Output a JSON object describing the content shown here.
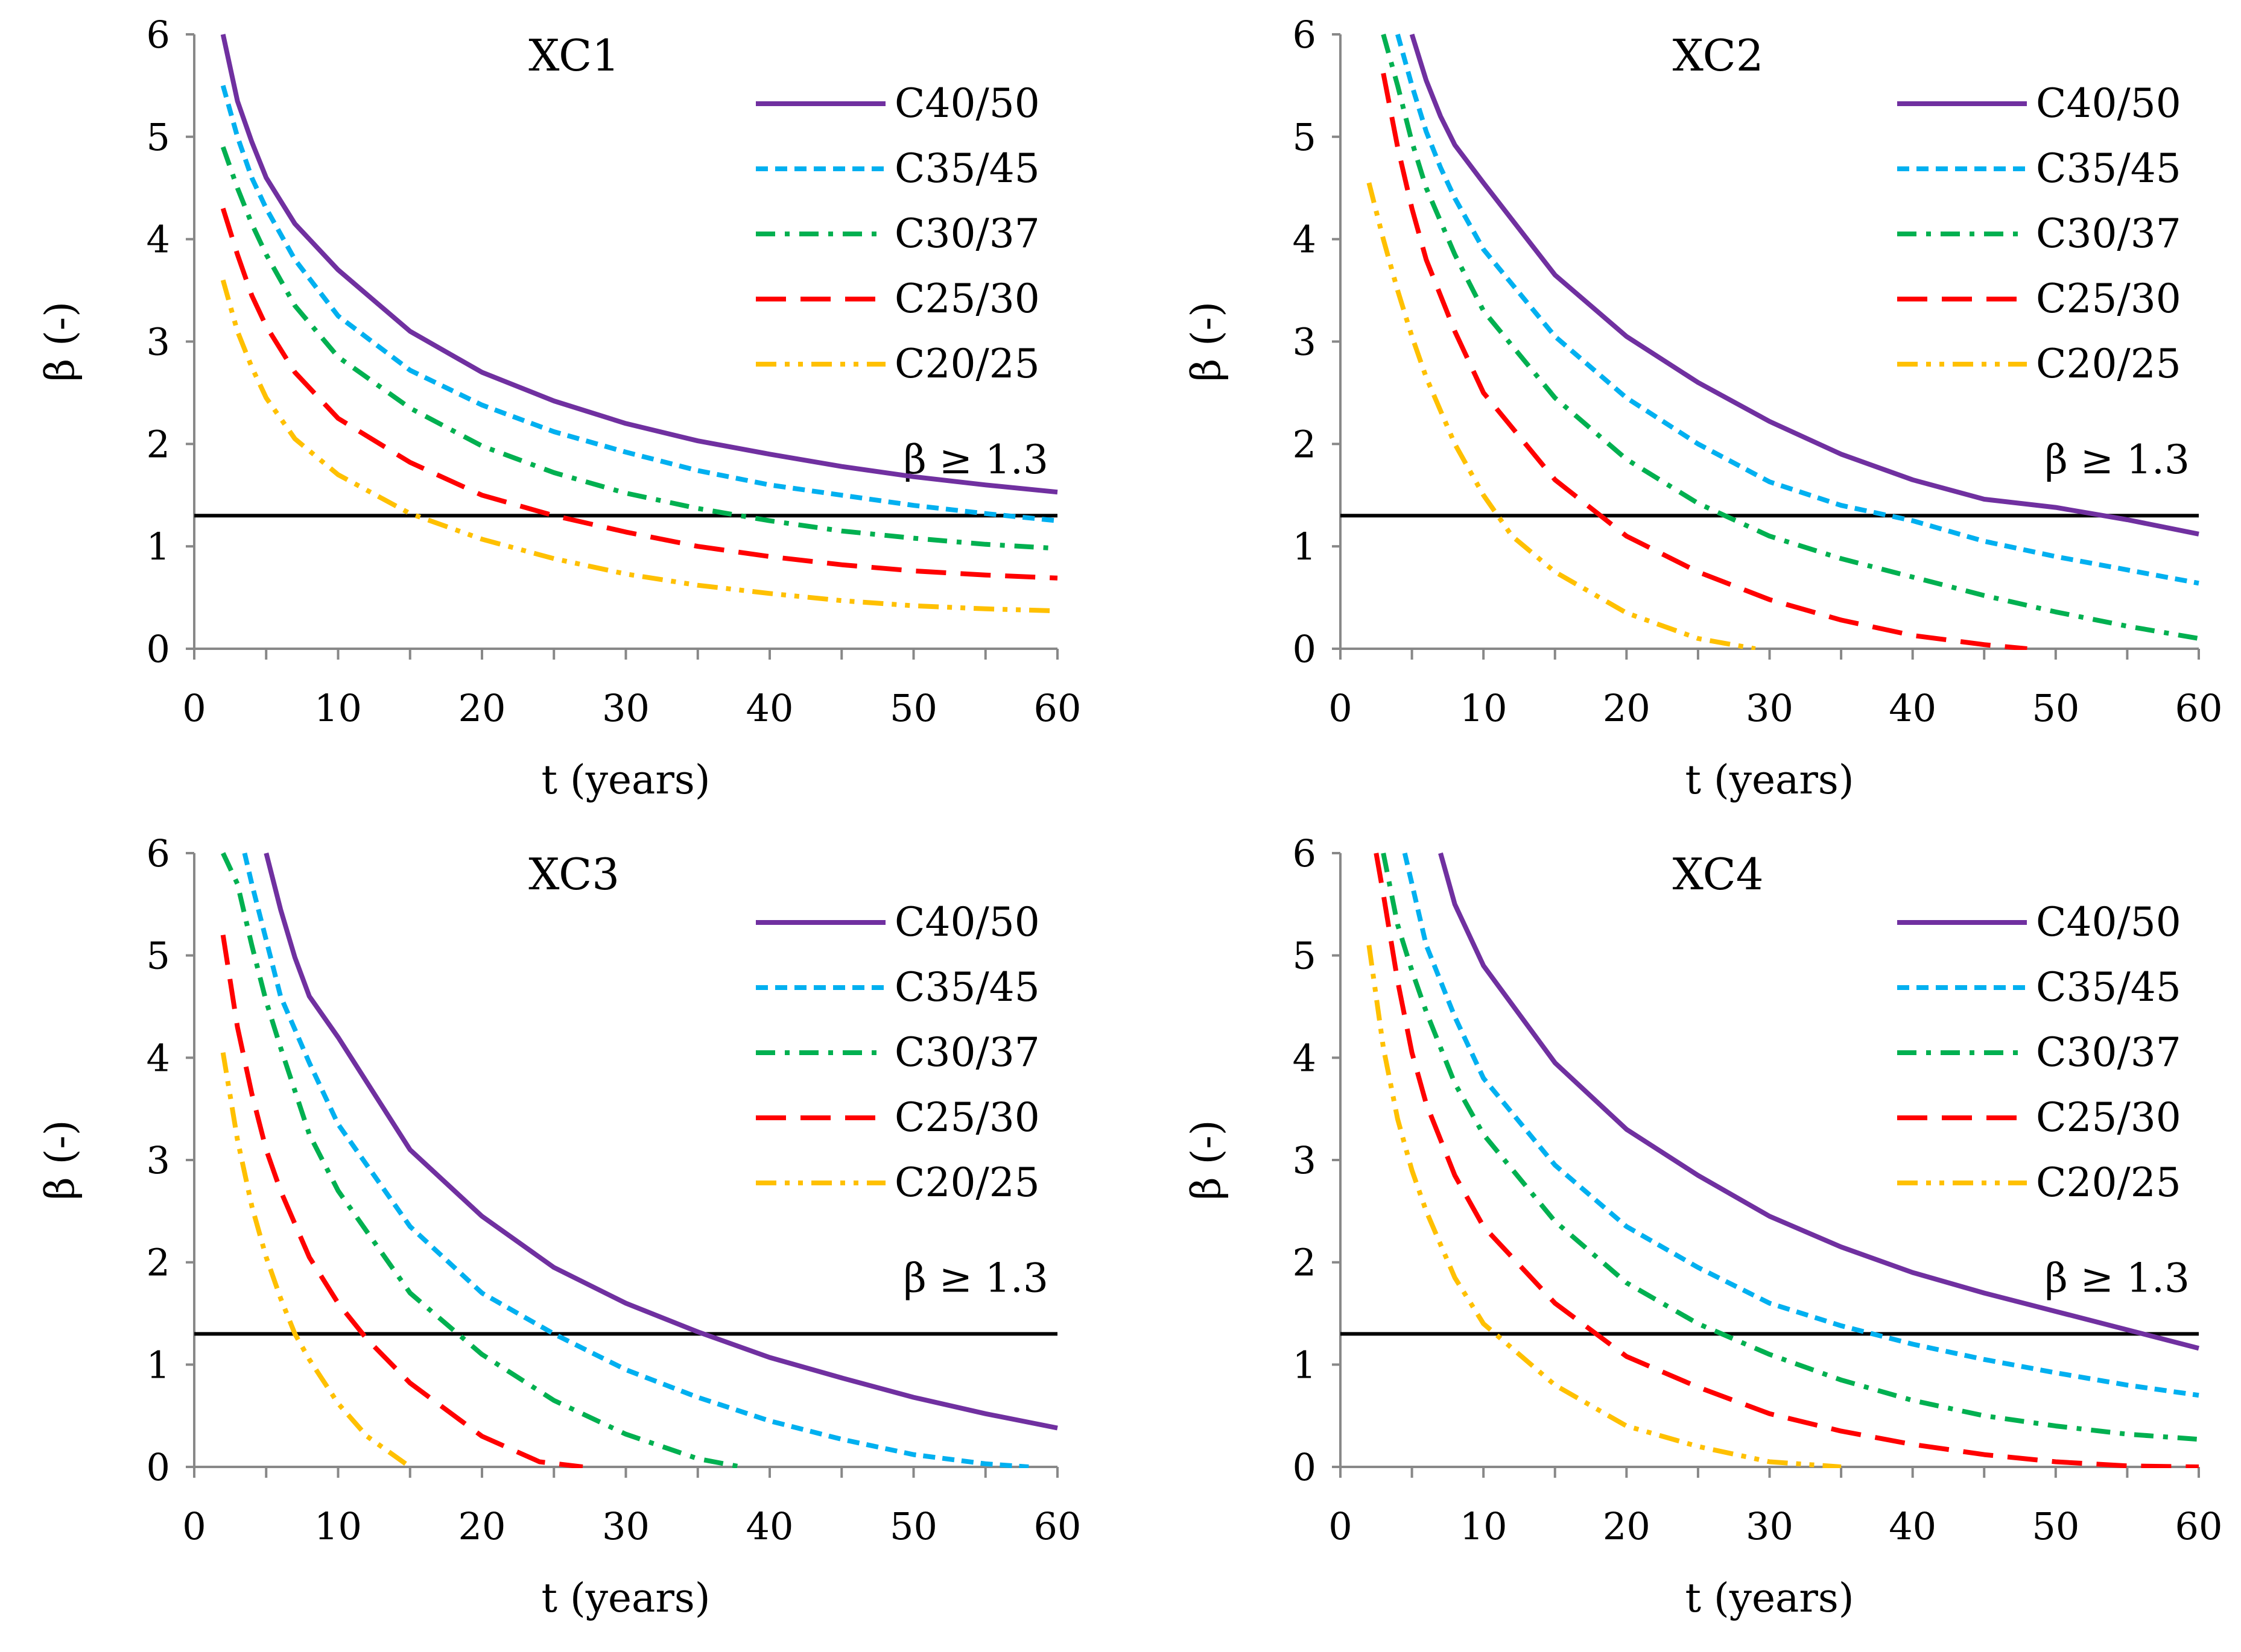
{
  "figure": {
    "series_styles": [
      {
        "name": "C40/50",
        "color": "#7030A0",
        "dash": "solid"
      },
      {
        "name": "C35/45",
        "color": "#00B0F0",
        "dash": "dash"
      },
      {
        "name": "C30/37",
        "color": "#00B050",
        "dash": "dashdot"
      },
      {
        "name": "C25/30",
        "color": "#FF0000",
        "dash": "longdash"
      },
      {
        "name": "C20/25",
        "color": "#FFC000",
        "dash": "dashdotdot"
      }
    ],
    "threshold_color": "#000000"
  },
  "chart_data": [
    {
      "type": "line",
      "title": "XC1",
      "xlabel": "t (years)",
      "ylabel": "β (-)",
      "xlim": [
        0,
        60
      ],
      "ylim": [
        0,
        6
      ],
      "xticks": [
        "0",
        "10",
        "20",
        "30",
        "40",
        "50",
        "60"
      ],
      "yticks": [
        "0",
        "1",
        "2",
        "3",
        "4",
        "5",
        "6"
      ],
      "threshold": {
        "value": 1.3,
        "label": "β ≥ 1.3"
      },
      "x": [
        2,
        3,
        4,
        5,
        7,
        10,
        15,
        20,
        25,
        30,
        35,
        40,
        45,
        50,
        55,
        60
      ],
      "series": [
        {
          "name": "C40/50",
          "values": [
            6.0,
            5.35,
            4.95,
            4.6,
            4.15,
            3.7,
            3.1,
            2.7,
            2.42,
            2.2,
            2.03,
            1.9,
            1.78,
            1.68,
            1.6,
            1.53
          ]
        },
        {
          "name": "C35/45",
          "values": [
            5.5,
            5.0,
            4.6,
            4.3,
            3.8,
            3.25,
            2.72,
            2.38,
            2.12,
            1.92,
            1.74,
            1.6,
            1.5,
            1.4,
            1.32,
            1.25
          ]
        },
        {
          "name": "C30/37",
          "values": [
            4.9,
            4.5,
            4.15,
            3.85,
            3.35,
            2.85,
            2.35,
            1.98,
            1.72,
            1.52,
            1.37,
            1.25,
            1.15,
            1.08,
            1.02,
            0.98
          ]
        },
        {
          "name": "C25/30",
          "values": [
            4.3,
            3.85,
            3.45,
            3.15,
            2.7,
            2.25,
            1.82,
            1.5,
            1.3,
            1.14,
            1.0,
            0.9,
            0.82,
            0.76,
            0.72,
            0.69
          ]
        },
        {
          "name": "C20/25",
          "values": [
            3.6,
            3.1,
            2.75,
            2.45,
            2.05,
            1.7,
            1.32,
            1.07,
            0.88,
            0.73,
            0.62,
            0.54,
            0.47,
            0.42,
            0.39,
            0.37
          ]
        }
      ]
    },
    {
      "type": "line",
      "title": "XC2",
      "xlabel": "t (years)",
      "ylabel": "β (-)",
      "xlim": [
        0,
        60
      ],
      "ylim": [
        0,
        6
      ],
      "xticks": [
        "0",
        "10",
        "20",
        "30",
        "40",
        "50",
        "60"
      ],
      "yticks": [
        "0",
        "1",
        "2",
        "3",
        "4",
        "5",
        "6"
      ],
      "threshold": {
        "value": 1.3,
        "label": "β ≥ 1.3"
      },
      "series": [
        {
          "name": "C40/50",
          "x": [
            5,
            6,
            7,
            8,
            10,
            15,
            20,
            25,
            30,
            35,
            40,
            45,
            50,
            55,
            60
          ],
          "values": [
            6.0,
            5.55,
            5.2,
            4.92,
            4.55,
            3.65,
            3.05,
            2.6,
            2.22,
            1.9,
            1.65,
            1.46,
            1.38,
            1.26,
            1.12
          ]
        },
        {
          "name": "C35/45",
          "x": [
            4,
            5,
            6,
            7,
            8,
            10,
            15,
            20,
            25,
            30,
            35,
            40,
            45,
            50,
            55,
            60
          ],
          "values": [
            6.0,
            5.5,
            5.05,
            4.7,
            4.4,
            3.9,
            3.05,
            2.45,
            2.0,
            1.63,
            1.4,
            1.25,
            1.05,
            0.9,
            0.77,
            0.64
          ]
        },
        {
          "name": "C30/37",
          "x": [
            3,
            4,
            5,
            6,
            8,
            10,
            15,
            20,
            25,
            30,
            35,
            40,
            45,
            50,
            55,
            60
          ],
          "values": [
            6.0,
            5.5,
            4.95,
            4.5,
            3.85,
            3.3,
            2.45,
            1.85,
            1.42,
            1.1,
            0.88,
            0.7,
            0.52,
            0.36,
            0.22,
            0.1
          ]
        },
        {
          "name": "C25/30",
          "x": [
            3,
            4,
            5,
            6,
            8,
            10,
            15,
            20,
            25,
            30,
            35,
            40,
            45,
            48
          ],
          "values": [
            5.62,
            4.9,
            4.3,
            3.8,
            3.1,
            2.5,
            1.65,
            1.1,
            0.75,
            0.48,
            0.28,
            0.13,
            0.04,
            0.0
          ]
        },
        {
          "name": "C20/25",
          "x": [
            2,
            3,
            4,
            5,
            6,
            8,
            10,
            12,
            15,
            20,
            25,
            29
          ],
          "values": [
            4.55,
            4.0,
            3.5,
            3.05,
            2.65,
            2.0,
            1.5,
            1.1,
            0.75,
            0.35,
            0.1,
            0.0
          ]
        }
      ]
    },
    {
      "type": "line",
      "title": "XC3",
      "xlabel": "t (years)",
      "ylabel": "β (-)",
      "xlim": [
        0,
        60
      ],
      "ylim": [
        0,
        6
      ],
      "xticks": [
        "0",
        "10",
        "20",
        "30",
        "40",
        "50",
        "60"
      ],
      "yticks": [
        "0",
        "1",
        "2",
        "3",
        "4",
        "5",
        "6"
      ],
      "threshold": {
        "value": 1.3,
        "label": "β ≥ 1.3"
      },
      "series": [
        {
          "name": "C40/50",
          "x": [
            5,
            6,
            7,
            8,
            10,
            15,
            20,
            25,
            30,
            35,
            40,
            45,
            50,
            55,
            60
          ],
          "values": [
            6.0,
            5.45,
            4.98,
            4.6,
            4.2,
            3.1,
            2.45,
            1.95,
            1.6,
            1.32,
            1.07,
            0.87,
            0.68,
            0.52,
            0.38
          ]
        },
        {
          "name": "C35/45",
          "x": [
            3.5,
            4,
            5,
            6,
            8,
            10,
            15,
            20,
            25,
            30,
            35,
            40,
            45,
            50,
            55,
            58
          ],
          "values": [
            6.0,
            5.7,
            5.15,
            4.6,
            3.95,
            3.35,
            2.35,
            1.7,
            1.3,
            0.95,
            0.68,
            0.45,
            0.27,
            0.12,
            0.03,
            0.0
          ]
        },
        {
          "name": "C30/37",
          "x": [
            2,
            3,
            4,
            5,
            6,
            8,
            10,
            15,
            20,
            25,
            30,
            35,
            38
          ],
          "values": [
            6.0,
            5.7,
            5.1,
            4.55,
            4.1,
            3.25,
            2.7,
            1.7,
            1.1,
            0.65,
            0.32,
            0.08,
            0.0
          ]
        },
        {
          "name": "C25/30",
          "x": [
            2,
            3,
            4,
            5,
            6,
            8,
            10,
            12,
            15,
            20,
            24,
            27
          ],
          "values": [
            5.2,
            4.3,
            3.65,
            3.1,
            2.7,
            2.05,
            1.6,
            1.25,
            0.82,
            0.3,
            0.05,
            0.0
          ]
        },
        {
          "name": "C20/25",
          "x": [
            2,
            3,
            4,
            5,
            6,
            7,
            8,
            10,
            12,
            15
          ],
          "values": [
            4.05,
            3.2,
            2.55,
            2.05,
            1.65,
            1.3,
            1.05,
            0.62,
            0.3,
            0.0
          ]
        }
      ]
    },
    {
      "type": "line",
      "title": "XC4",
      "xlabel": "t (years)",
      "ylabel": "β (-)",
      "xlim": [
        0,
        60
      ],
      "ylim": [
        0,
        6
      ],
      "xticks": [
        "0",
        "10",
        "20",
        "30",
        "40",
        "50",
        "60"
      ],
      "yticks": [
        "0",
        "1",
        "2",
        "3",
        "4",
        "5",
        "6"
      ],
      "threshold": {
        "value": 1.3,
        "label": "β ≥ 1.3"
      },
      "series": [
        {
          "name": "C40/50",
          "x": [
            7,
            8,
            10,
            15,
            20,
            25,
            30,
            35,
            40,
            45,
            50,
            55,
            60
          ],
          "values": [
            6.0,
            5.5,
            4.9,
            3.95,
            3.3,
            2.85,
            2.45,
            2.15,
            1.9,
            1.7,
            1.52,
            1.34,
            1.16
          ]
        },
        {
          "name": "C35/45",
          "x": [
            4.5,
            5,
            6,
            8,
            10,
            15,
            20,
            25,
            30,
            35,
            40,
            45,
            50,
            55,
            60
          ],
          "values": [
            6.0,
            5.7,
            5.1,
            4.4,
            3.8,
            2.95,
            2.35,
            1.95,
            1.6,
            1.38,
            1.2,
            1.05,
            0.92,
            0.8,
            0.7
          ]
        },
        {
          "name": "C30/37",
          "x": [
            3,
            4,
            5,
            6,
            8,
            10,
            15,
            20,
            25,
            30,
            35,
            40,
            45,
            50,
            55,
            60
          ],
          "values": [
            6.0,
            5.3,
            4.85,
            4.45,
            3.75,
            3.25,
            2.4,
            1.8,
            1.4,
            1.1,
            0.85,
            0.65,
            0.5,
            0.4,
            0.32,
            0.27
          ]
        },
        {
          "name": "C25/30",
          "x": [
            2.5,
            3,
            4,
            5,
            6,
            8,
            10,
            15,
            20,
            25,
            30,
            35,
            40,
            45,
            50,
            55,
            60
          ],
          "values": [
            6.0,
            5.6,
            4.75,
            4.05,
            3.55,
            2.85,
            2.35,
            1.6,
            1.08,
            0.78,
            0.52,
            0.35,
            0.22,
            0.12,
            0.05,
            0.01,
            0.0
          ]
        },
        {
          "name": "C20/25",
          "x": [
            2,
            3,
            4,
            5,
            6,
            8,
            10,
            15,
            20,
            25,
            30,
            35
          ],
          "values": [
            5.1,
            4.1,
            3.4,
            2.9,
            2.5,
            1.85,
            1.4,
            0.8,
            0.4,
            0.2,
            0.05,
            0.0
          ]
        }
      ]
    }
  ]
}
